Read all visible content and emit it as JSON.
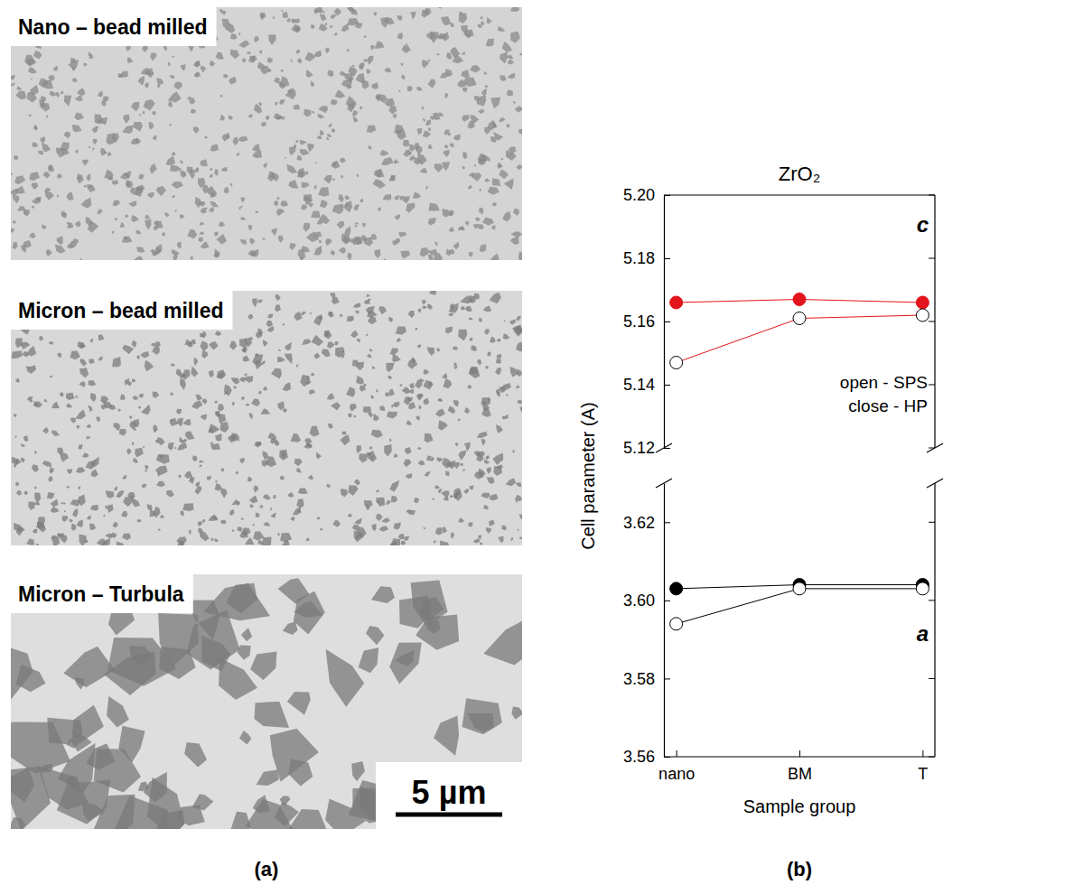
{
  "figure": {
    "panel_labels": [
      "(a)",
      "(b)"
    ],
    "micrographs": [
      "Nano – bead milled",
      "Micron – bead milled",
      "Micron – Turbula"
    ],
    "scale_bar": "5 µm"
  },
  "chart_data": [
    {
      "type": "line",
      "title": "ZrO₂",
      "categories": [
        "nano",
        "BM",
        "T"
      ],
      "ylim": [
        5.12,
        5.2
      ],
      "yticks": [
        5.12,
        5.14,
        5.16,
        5.18,
        {
          "value": 5.2,
          "label": "5.20"
        }
      ],
      "tick_labels": "y",
      "label": "c",
      "annotations": [
        "open - SPS",
        "close - HP"
      ],
      "series": [
        {
          "color": "#e3141b",
          "marker": "filled",
          "values": [
            5.166,
            5.167,
            5.166
          ]
        },
        {
          "color": "#e3141b",
          "marker": "open",
          "values": [
            5.147,
            5.161,
            5.162
          ]
        }
      ]
    },
    {
      "type": "line",
      "categories": [
        "nano",
        "BM",
        "T"
      ],
      "x_label": "Sample group",
      "y_label": "Cell parameter (A)",
      "ylim": [
        3.56,
        3.63
      ],
      "yticks": [
        3.56,
        3.58,
        {
          "value": 3.6,
          "label": "3.60"
        },
        3.62
      ],
      "label": "a",
      "series": [
        {
          "color": "#000000",
          "marker": "filled",
          "values": [
            3.603,
            3.604,
            3.604
          ]
        },
        {
          "color": "#000000",
          "marker": "open",
          "values": [
            3.594,
            3.603,
            3.603
          ]
        }
      ]
    }
  ]
}
